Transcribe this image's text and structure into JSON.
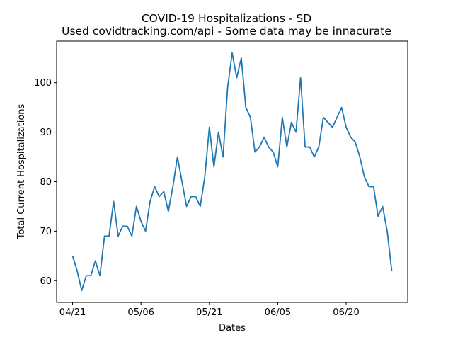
{
  "chart_data": {
    "type": "line",
    "title": "COVID-19 Hospitalizations - SD",
    "subtitle": "Used covidtracking.com/api - Some data may be innacurate",
    "xlabel": "Dates",
    "ylabel": "Total Current Hospitalizations",
    "x_ticks": [
      {
        "label": "04/21",
        "day": 0
      },
      {
        "label": "05/06",
        "day": 15
      },
      {
        "label": "05/21",
        "day": 30
      },
      {
        "label": "06/05",
        "day": 45
      },
      {
        "label": "06/20",
        "day": 60
      }
    ],
    "y_ticks": [
      60,
      70,
      80,
      90,
      100
    ],
    "xlim": [
      -3.5,
      73.5
    ],
    "ylim": [
      55.6,
      108.4
    ],
    "grid": false,
    "series": [
      {
        "color": "#1f77b4",
        "values": [
          65,
          62,
          58,
          61,
          61,
          64,
          61,
          69,
          69,
          76,
          69,
          71,
          71,
          69,
          75,
          72,
          70,
          76,
          79,
          77,
          78,
          74,
          79,
          85,
          80,
          75,
          77,
          77,
          75,
          81,
          91,
          83,
          90,
          85,
          99,
          106,
          101,
          105,
          95,
          93,
          86,
          87,
          89,
          87,
          86,
          83,
          93,
          87,
          92,
          90,
          101,
          87,
          87,
          85,
          87,
          93,
          92,
          91,
          93,
          95,
          91,
          89,
          88,
          85,
          81,
          79,
          79,
          73,
          75,
          70,
          62
        ]
      }
    ]
  }
}
